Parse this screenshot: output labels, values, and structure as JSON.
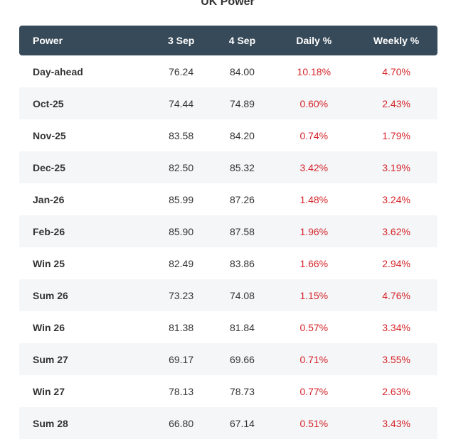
{
  "title": "UK Power",
  "colors": {
    "header_bg": "#374a59",
    "pct_text": "#d6262b",
    "alt_row": "#f4f6f8"
  },
  "columns": [
    "Power",
    "3 Sep",
    "4 Sep",
    "Daily %",
    "Weekly %"
  ],
  "rows": [
    {
      "name": "Day-ahead",
      "d1": "76.24",
      "d2": "84.00",
      "daily": "10.18%",
      "weekly": "4.70%"
    },
    {
      "name": "Oct-25",
      "d1": "74.44",
      "d2": "74.89",
      "daily": "0.60%",
      "weekly": "2.43%"
    },
    {
      "name": "Nov-25",
      "d1": "83.58",
      "d2": "84.20",
      "daily": "0.74%",
      "weekly": "1.79%"
    },
    {
      "name": "Dec-25",
      "d1": "82.50",
      "d2": "85.32",
      "daily": "3.42%",
      "weekly": "3.19%"
    },
    {
      "name": "Jan-26",
      "d1": "85.99",
      "d2": "87.26",
      "daily": "1.48%",
      "weekly": "3.24%"
    },
    {
      "name": "Feb-26",
      "d1": "85.90",
      "d2": "87.58",
      "daily": "1.96%",
      "weekly": "3.62%"
    },
    {
      "name": "Win 25",
      "d1": "82.49",
      "d2": "83.86",
      "daily": "1.66%",
      "weekly": "2.94%"
    },
    {
      "name": "Sum 26",
      "d1": "73.23",
      "d2": "74.08",
      "daily": "1.15%",
      "weekly": "4.76%"
    },
    {
      "name": "Win 26",
      "d1": "81.38",
      "d2": "81.84",
      "daily": "0.57%",
      "weekly": "3.34%"
    },
    {
      "name": "Sum 27",
      "d1": "69.17",
      "d2": "69.66",
      "daily": "0.71%",
      "weekly": "3.55%"
    },
    {
      "name": "Win 27",
      "d1": "78.13",
      "d2": "78.73",
      "daily": "0.77%",
      "weekly": "2.63%"
    },
    {
      "name": "Sum 28",
      "d1": "66.80",
      "d2": "67.14",
      "daily": "0.51%",
      "weekly": "3.43%"
    }
  ]
}
